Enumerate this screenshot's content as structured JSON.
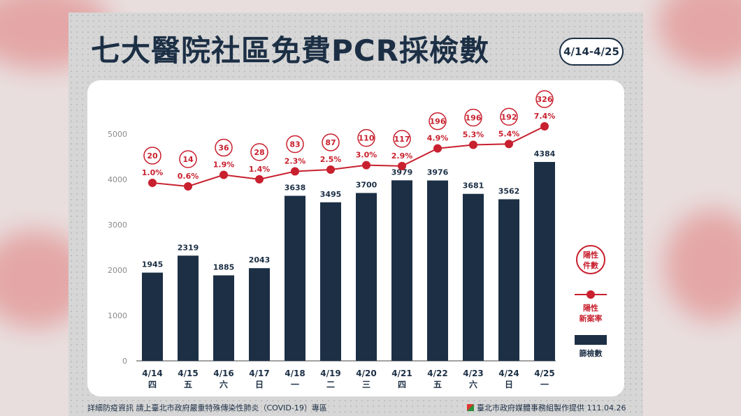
{
  "header": {
    "title": "七大醫院社區免費PCR採檢數",
    "date_range": "4/14-4/25"
  },
  "legend": {
    "positive_count_label_line1": "陽性",
    "positive_count_label_line2": "件數",
    "rate_label_line1": "陽性",
    "rate_label_line2": "新案率",
    "tests_label": "篩檢數"
  },
  "footer": {
    "left": "詳細防疫資訊 請上臺北市政府嚴重特殊傳染性肺炎（COVID-19）專區",
    "right": "臺北市政府媒體事務組製作提供 111.04.26"
  },
  "colors": {
    "bar": "#1c2f45",
    "line": "#c8202e",
    "title": "#1c2f45"
  },
  "chart_data": {
    "type": "bar",
    "categories": [
      "4/14",
      "4/15",
      "4/16",
      "4/17",
      "4/18",
      "4/19",
      "4/20",
      "4/21",
      "4/22",
      "4/23",
      "4/24",
      "4/25"
    ],
    "weekdays": [
      "四",
      "五",
      "六",
      "日",
      "一",
      "二",
      "三",
      "四",
      "五",
      "六",
      "日",
      "一"
    ],
    "series": [
      {
        "name": "篩檢數",
        "type": "bar",
        "values": [
          1945,
          2319,
          1885,
          2043,
          3638,
          3495,
          3700,
          3979,
          3976,
          3681,
          3562,
          4384
        ]
      },
      {
        "name": "陽性新案率",
        "type": "line",
        "values": [
          "1.0%",
          "0.6%",
          "1.9%",
          "1.4%",
          "2.3%",
          "2.5%",
          "3.0%",
          "2.9%",
          "4.9%",
          "5.3%",
          "5.4%",
          "7.4%"
        ],
        "rate": [
          1.0,
          0.6,
          1.9,
          1.4,
          2.3,
          2.5,
          3.0,
          2.9,
          4.9,
          5.3,
          5.4,
          7.4
        ]
      },
      {
        "name": "陽性件數",
        "type": "label",
        "values": [
          20,
          14,
          36,
          28,
          83,
          87,
          110,
          117,
          196,
          196,
          192,
          326
        ]
      }
    ],
    "yticks": [
      0,
      1000,
      2000,
      3000,
      4000,
      5000
    ],
    "ylim": [
      0,
      5000
    ],
    "grid": false,
    "legend_position": "right"
  }
}
